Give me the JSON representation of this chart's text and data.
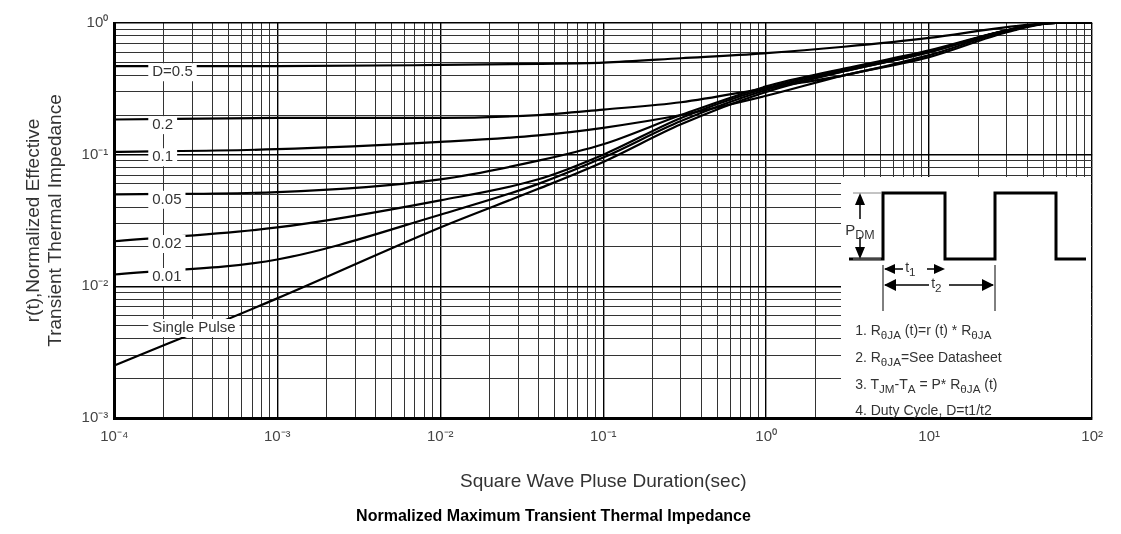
{
  "chart_data": {
    "type": "line",
    "title": "Normalized Maximum Transient Thermal Impedance",
    "xlabel": "Square Wave Pluse Duration(sec)",
    "ylabel": "r(t),Normalized Effective\nTransient Thermal Impedance",
    "log": "xy",
    "grid": true,
    "legend": false,
    "marker": "none",
    "xlim": [
      0.0001,
      100
    ],
    "ylim": [
      0.001,
      1
    ],
    "xticks": [
      {
        "value": 0.0001,
        "label": "10⁻⁴"
      },
      {
        "value": 0.0002,
        "label": null
      },
      {
        "value": 0.0003,
        "label": null
      },
      {
        "value": 0.0004,
        "label": null
      },
      {
        "value": 0.0005,
        "label": null
      },
      {
        "value": 0.0006,
        "label": null
      },
      {
        "value": 0.0007,
        "label": null
      },
      {
        "value": 0.0008,
        "label": null
      },
      {
        "value": 0.0009,
        "label": null
      },
      {
        "value": 0.001,
        "label": "10⁻³"
      },
      {
        "value": 0.002,
        "label": null
      },
      {
        "value": 0.003,
        "label": null
      },
      {
        "value": 0.004,
        "label": null
      },
      {
        "value": 0.005,
        "label": null
      },
      {
        "value": 0.006,
        "label": null
      },
      {
        "value": 0.007,
        "label": null
      },
      {
        "value": 0.008,
        "label": null
      },
      {
        "value": 0.009,
        "label": null
      },
      {
        "value": 0.01,
        "label": "10⁻²"
      },
      {
        "value": 0.02,
        "label": null
      },
      {
        "value": 0.03,
        "label": null
      },
      {
        "value": 0.04,
        "label": null
      },
      {
        "value": 0.05,
        "label": null
      },
      {
        "value": 0.06,
        "label": null
      },
      {
        "value": 0.07,
        "label": null
      },
      {
        "value": 0.08,
        "label": null
      },
      {
        "value": 0.09,
        "label": null
      },
      {
        "value": 0.1,
        "label": "10⁻¹"
      },
      {
        "value": 0.2,
        "label": null
      },
      {
        "value": 0.3,
        "label": null
      },
      {
        "value": 0.4,
        "label": null
      },
      {
        "value": 0.5,
        "label": null
      },
      {
        "value": 0.6,
        "label": null
      },
      {
        "value": 0.7,
        "label": null
      },
      {
        "value": 0.8,
        "label": null
      },
      {
        "value": 0.9,
        "label": null
      },
      {
        "value": 1,
        "label": "10⁰"
      },
      {
        "value": 2,
        "label": null
      },
      {
        "value": 3,
        "label": null
      },
      {
        "value": 4,
        "label": null
      },
      {
        "value": 5,
        "label": null
      },
      {
        "value": 6,
        "label": null
      },
      {
        "value": 7,
        "label": null
      },
      {
        "value": 8,
        "label": null
      },
      {
        "value": 9,
        "label": null
      },
      {
        "value": 10,
        "label": "10¹"
      },
      {
        "value": 20,
        "label": null
      },
      {
        "value": 30,
        "label": null
      },
      {
        "value": 40,
        "label": null
      },
      {
        "value": 50,
        "label": null
      },
      {
        "value": 60,
        "label": null
      },
      {
        "value": 70,
        "label": null
      },
      {
        "value": 80,
        "label": null
      },
      {
        "value": 90,
        "label": null
      },
      {
        "value": 100,
        "label": "10²"
      }
    ],
    "yticks": [
      {
        "value": 0.001,
        "label": "10⁻³"
      },
      {
        "value": 0.002,
        "label": null
      },
      {
        "value": 0.003,
        "label": null
      },
      {
        "value": 0.004,
        "label": null
      },
      {
        "value": 0.005,
        "label": null
      },
      {
        "value": 0.006,
        "label": null
      },
      {
        "value": 0.007,
        "label": null
      },
      {
        "value": 0.008,
        "label": null
      },
      {
        "value": 0.009,
        "label": null
      },
      {
        "value": 0.01,
        "label": "10⁻²"
      },
      {
        "value": 0.02,
        "label": null
      },
      {
        "value": 0.03,
        "label": null
      },
      {
        "value": 0.04,
        "label": null
      },
      {
        "value": 0.05,
        "label": null
      },
      {
        "value": 0.06,
        "label": null
      },
      {
        "value": 0.07,
        "label": null
      },
      {
        "value": 0.08,
        "label": null
      },
      {
        "value": 0.09,
        "label": null
      },
      {
        "value": 0.1,
        "label": "10⁻¹"
      },
      {
        "value": 0.2,
        "label": null
      },
      {
        "value": 0.3,
        "label": null
      },
      {
        "value": 0.4,
        "label": null
      },
      {
        "value": 0.5,
        "label": null
      },
      {
        "value": 0.6,
        "label": null
      },
      {
        "value": 0.7,
        "label": null
      },
      {
        "value": 0.8,
        "label": null
      },
      {
        "value": 0.9,
        "label": null
      },
      {
        "value": 1,
        "label": "10⁰"
      }
    ],
    "x": [
      0.0001,
      0.001,
      0.01,
      0.04,
      0.1,
      0.3,
      1,
      3,
      10,
      30,
      60,
      100
    ],
    "series": [
      {
        "name": "D=0.5",
        "color": "#000000",
        "values": [
          0.47,
          0.47,
          0.48,
          0.49,
          0.5,
          0.54,
          0.59,
          0.66,
          0.77,
          0.93,
          1,
          1
        ]
      },
      {
        "name": "0.2",
        "color": "#000000",
        "values": [
          0.185,
          0.19,
          0.19,
          0.2,
          0.22,
          0.25,
          0.32,
          0.4,
          0.57,
          0.87,
          1,
          1
        ]
      },
      {
        "name": "0.1",
        "color": "#000000",
        "values": [
          0.105,
          0.11,
          0.125,
          0.14,
          0.16,
          0.2,
          0.28,
          0.4,
          0.55,
          0.85,
          1,
          1
        ]
      },
      {
        "name": "0.05",
        "color": "#000000",
        "values": [
          0.05,
          0.052,
          0.065,
          0.09,
          0.12,
          0.2,
          0.33,
          0.45,
          0.62,
          0.88,
          1,
          1
        ]
      },
      {
        "name": "0.02",
        "color": "#000000",
        "values": [
          0.022,
          0.028,
          0.045,
          0.065,
          0.1,
          0.19,
          0.32,
          0.44,
          0.61,
          0.88,
          1,
          1
        ]
      },
      {
        "name": "0.01",
        "color": "#000000",
        "values": [
          0.0123,
          0.016,
          0.035,
          0.06,
          0.095,
          0.18,
          0.31,
          0.43,
          0.6,
          0.88,
          1,
          1
        ]
      },
      {
        "name": "Single Pulse",
        "color": "#000000",
        "values": [
          0.0025,
          0.0081,
          0.028,
          0.055,
          0.088,
          0.17,
          0.3,
          0.43,
          0.6,
          0.88,
          1,
          1
        ]
      }
    ],
    "annotations": [
      "P$_{DM}$",
      "t$_{1}$",
      "t$_{2}$",
      "1. R$_{θJA}$ (t)=r (t) * R$_{θJA}$",
      "2. R$_{θJA}$=See Datasheet",
      "3. T$_{JM}$-T$_{A}$ = P* R$_{θJA}$ (t)",
      "4. Duty Cycle, D=t1/t2"
    ]
  }
}
